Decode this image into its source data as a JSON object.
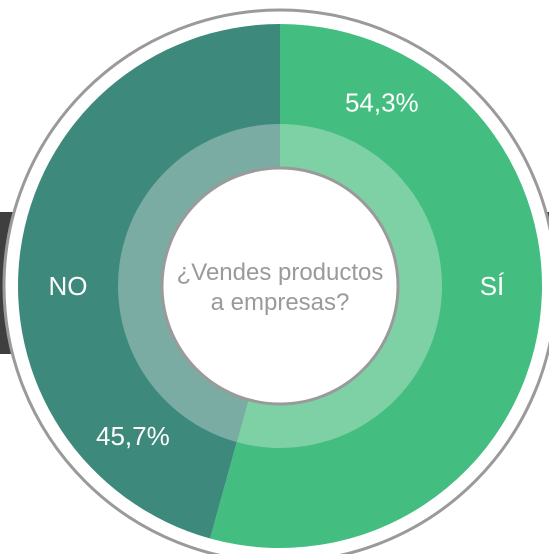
{
  "chart_data": {
    "type": "pie",
    "title": "¿Vendes productos a empresas?",
    "title_lines": [
      "¿Vendes productos",
      "a empresas?"
    ],
    "slices": [
      {
        "label": "SÍ",
        "value": 54.3,
        "value_label": "54,3%",
        "color": "#44bd80",
        "inner_color": "#7dd1a5"
      },
      {
        "label": "NO",
        "value": 45.7,
        "value_label": "45,7%",
        "color": "#3d8a7c",
        "inner_color": "#7aaca3"
      }
    ],
    "center_text_color": "#9a9a9a",
    "label_color": "#ffffff",
    "backdrop_color": "#3f3f3f",
    "ring_stroke_color": "#9a9a9a"
  }
}
